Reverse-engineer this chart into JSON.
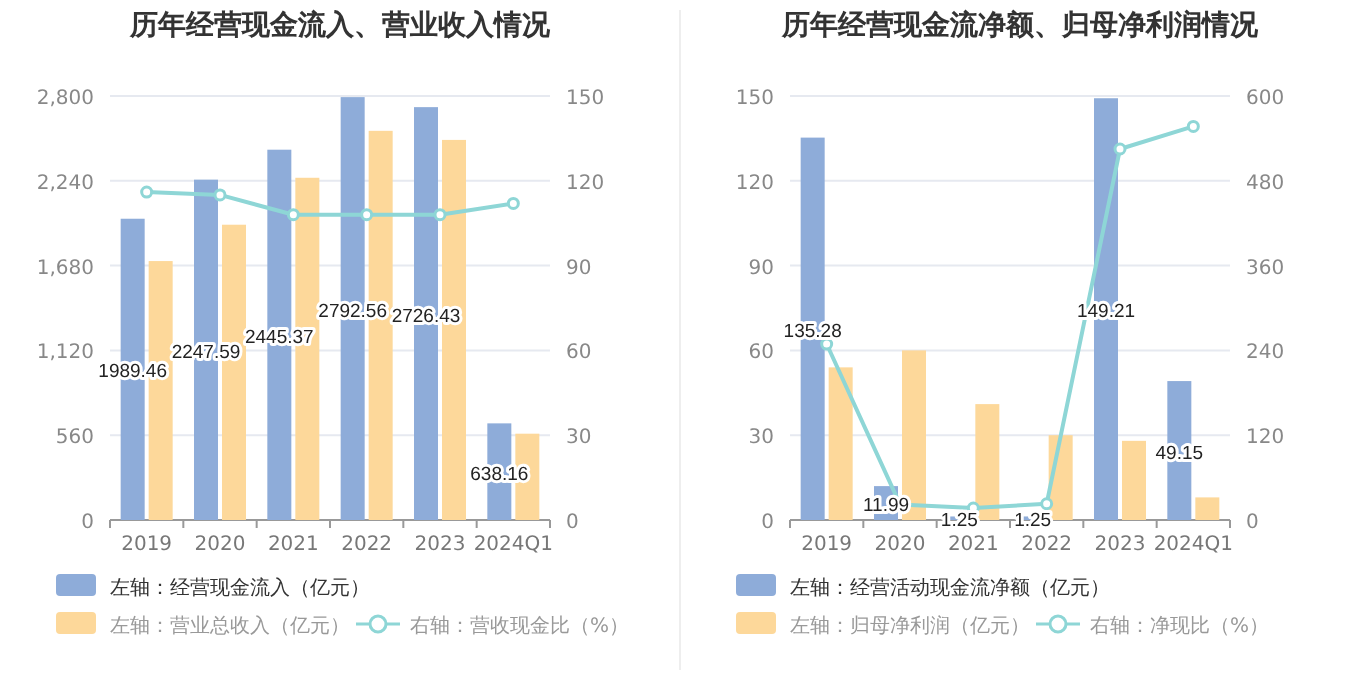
{
  "chart_data": [
    {
      "type": "bar",
      "title": "历年经营现金流入、营业收入情况",
      "categories": [
        "2019",
        "2020",
        "2021",
        "2022",
        "2023",
        "2024Q1"
      ],
      "series": [
        {
          "name": "左轴：经营现金流入（亿元）",
          "color": "#8eacd9",
          "values": [
            1989.46,
            2247.59,
            2445.37,
            2792.56,
            2726.43,
            638.16
          ],
          "value_labels": [
            "1989.46",
            "2247.59",
            "2445.37",
            "2792.56",
            "2726.43",
            "638.16"
          ]
        },
        {
          "name": "左轴：营业总收入（亿元）",
          "color": "#fdd89a",
          "values": [
            1710,
            1950,
            2260,
            2570,
            2510,
            570
          ]
        },
        {
          "name": "右轴：营收现金比（%）",
          "color": "#8ed6d6",
          "type": "line",
          "axis": "y2",
          "marker": "circle",
          "values": [
            116,
            115,
            108,
            108,
            108,
            112
          ]
        }
      ],
      "ylim": [
        0,
        2800
      ],
      "yticks": [
        0,
        {
          "value": 560,
          "label": "560"
        },
        {
          "value": 1120,
          "label": "1,120"
        },
        {
          "value": 1680,
          "label": "1,680"
        },
        {
          "value": 2240,
          "label": "2,240"
        },
        {
          "value": 2800,
          "label": "2,800"
        }
      ],
      "y2lim": [
        0,
        150
      ],
      "y2ticks": [
        0,
        30,
        60,
        90,
        120,
        150
      ],
      "grid": "y",
      "legend": "bottom"
    },
    {
      "type": "bar",
      "title": "历年经营现金流净额、归母净利润情况",
      "categories": [
        "2019",
        "2020",
        "2021",
        "2022",
        "2023",
        "2024Q1"
      ],
      "series": [
        {
          "name": "左轴：经营活动现金流净额（亿元）",
          "color": "#8eacd9",
          "values": [
            135.28,
            11.99,
            1.25,
            1.25,
            149.21,
            49.15
          ],
          "value_labels": [
            "135.28",
            "11.99",
            "1.25",
            "1.25",
            "149.21",
            "49.15"
          ]
        },
        {
          "name": "左轴：归母净利润（亿元）",
          "color": "#fdd89a",
          "values": [
            54,
            60,
            41,
            30,
            28,
            8
          ]
        },
        {
          "name": "右轴：净现比（%）",
          "color": "#8ed6d6",
          "type": "line",
          "axis": "y2",
          "marker": "circle",
          "values": [
            249,
            22,
            17,
            23,
            525,
            557
          ]
        }
      ],
      "ylim": [
        0,
        150
      ],
      "yticks": [
        0,
        30,
        60,
        90,
        120,
        150
      ],
      "y2lim": [
        0,
        600
      ],
      "y2ticks": [
        0,
        120,
        240,
        360,
        480,
        600
      ],
      "grid": "y",
      "legend": "bottom"
    }
  ]
}
